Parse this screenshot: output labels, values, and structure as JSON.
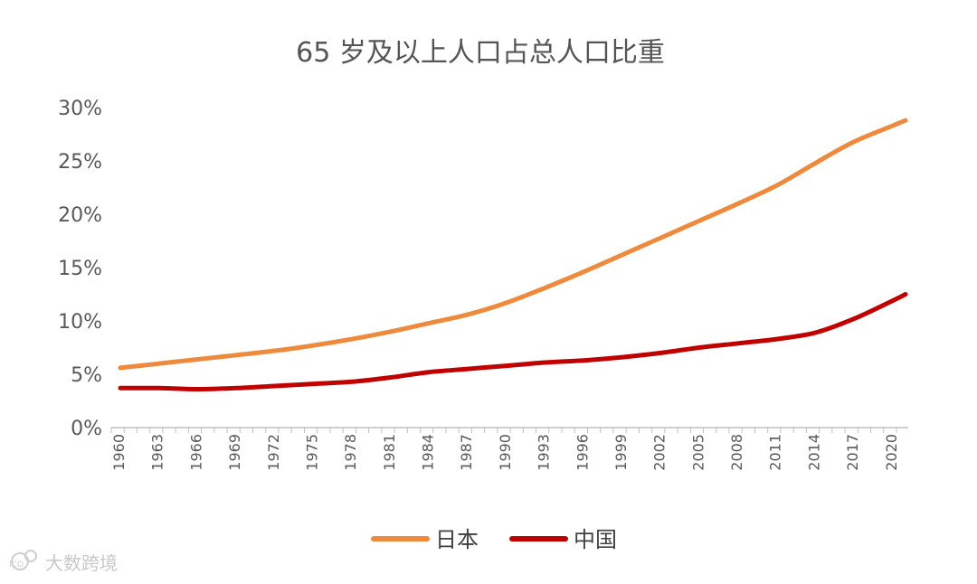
{
  "chart_data": {
    "type": "line",
    "title": "65 岁及以上人口占总人口比重",
    "xlabel": "",
    "ylabel": "",
    "ylim": [
      0,
      30
    ],
    "xlim": [
      1960,
      2021
    ],
    "y_ticks": [
      0,
      5,
      10,
      15,
      20,
      25,
      30
    ],
    "y_tick_labels": [
      "0%",
      "5%",
      "10%",
      "15%",
      "20%",
      "25%",
      "30%"
    ],
    "x_tick_labels": [
      "1960",
      "1963",
      "1966",
      "1969",
      "1972",
      "1975",
      "1978",
      "1981",
      "1984",
      "1987",
      "1990",
      "1993",
      "1996",
      "1999",
      "2002",
      "2005",
      "2008",
      "2011",
      "2014",
      "2017",
      "2020"
    ],
    "grid": false,
    "legend_position": "bottom-center",
    "series": [
      {
        "name": "日本",
        "color": "#ed8a3e",
        "x": [
          1960,
          1963,
          1966,
          1969,
          1972,
          1975,
          1978,
          1981,
          1984,
          1987,
          1990,
          1993,
          1996,
          1999,
          2002,
          2005,
          2008,
          2011,
          2014,
          2017,
          2020,
          2021
        ],
        "values": [
          5.6,
          6.0,
          6.4,
          6.8,
          7.2,
          7.7,
          8.3,
          9.0,
          9.8,
          10.6,
          11.7,
          13.1,
          14.6,
          16.2,
          17.8,
          19.4,
          21.0,
          22.7,
          24.8,
          26.8,
          28.3,
          28.8
        ]
      },
      {
        "name": "中国",
        "color": "#c00000",
        "x": [
          1960,
          1963,
          1966,
          1969,
          1972,
          1975,
          1978,
          1981,
          1984,
          1987,
          1990,
          1993,
          1996,
          1999,
          2002,
          2005,
          2008,
          2011,
          2014,
          2017,
          2020,
          2021
        ],
        "values": [
          3.7,
          3.7,
          3.6,
          3.7,
          3.9,
          4.1,
          4.3,
          4.7,
          5.2,
          5.5,
          5.8,
          6.1,
          6.3,
          6.6,
          7.0,
          7.5,
          7.9,
          8.3,
          8.9,
          10.2,
          11.9,
          12.5
        ]
      }
    ]
  },
  "watermark": {
    "logo_text": "ICO",
    "text": "大数跨境"
  }
}
